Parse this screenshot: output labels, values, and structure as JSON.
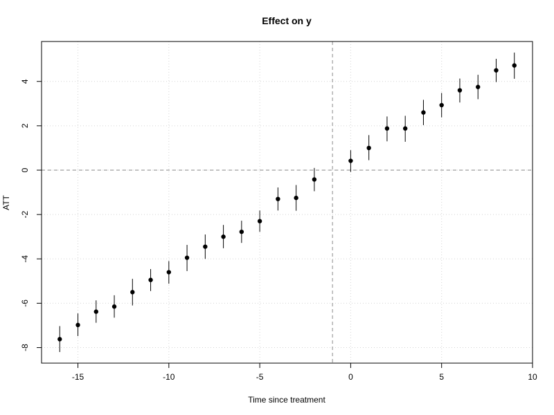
{
  "chart_data": {
    "type": "scatter",
    "title": "Effect on y",
    "xlabel": "Time since treatment",
    "ylabel": "ATT",
    "xlim": [
      -17,
      10
    ],
    "ylim": [
      -8.7,
      5.8
    ],
    "xticks": [
      -15,
      -10,
      -5,
      0,
      5,
      10
    ],
    "yticks": [
      -8,
      -6,
      -4,
      -2,
      0,
      2,
      4
    ],
    "grid": true,
    "hline": 0,
    "vline": -1,
    "series": [
      {
        "x": [
          -16,
          -15,
          -14,
          -13,
          -12,
          -11,
          -10,
          -9,
          -8,
          -7,
          -6,
          -5,
          -4,
          -3,
          -2,
          0,
          1,
          2,
          3,
          4,
          5,
          6,
          7,
          8,
          9
        ],
        "y": [
          -7.62,
          -6.98,
          -6.38,
          -6.15,
          -5.5,
          -4.95,
          -4.6,
          -3.95,
          -3.45,
          -3.0,
          -2.78,
          -2.3,
          -1.3,
          -1.25,
          -0.42,
          0.42,
          1.0,
          1.88,
          1.88,
          2.6,
          2.93,
          3.6,
          3.75,
          4.5,
          4.72
        ],
        "lower": [
          -8.2,
          -7.48,
          -6.88,
          -6.65,
          -6.1,
          -5.45,
          -5.12,
          -4.55,
          -4.0,
          -3.52,
          -3.28,
          -2.78,
          -1.82,
          -1.83,
          -0.95,
          -0.08,
          0.45,
          1.3,
          1.28,
          2.03,
          2.38,
          3.05,
          3.2,
          3.97,
          4.12
        ],
        "upper": [
          -7.03,
          -6.46,
          -5.87,
          -5.64,
          -4.9,
          -4.46,
          -4.1,
          -3.37,
          -2.9,
          -2.47,
          -2.28,
          -1.82,
          -0.78,
          -0.67,
          0.1,
          0.9,
          1.58,
          2.42,
          2.45,
          3.17,
          3.48,
          4.13,
          4.3,
          5.02,
          5.3
        ]
      }
    ]
  }
}
